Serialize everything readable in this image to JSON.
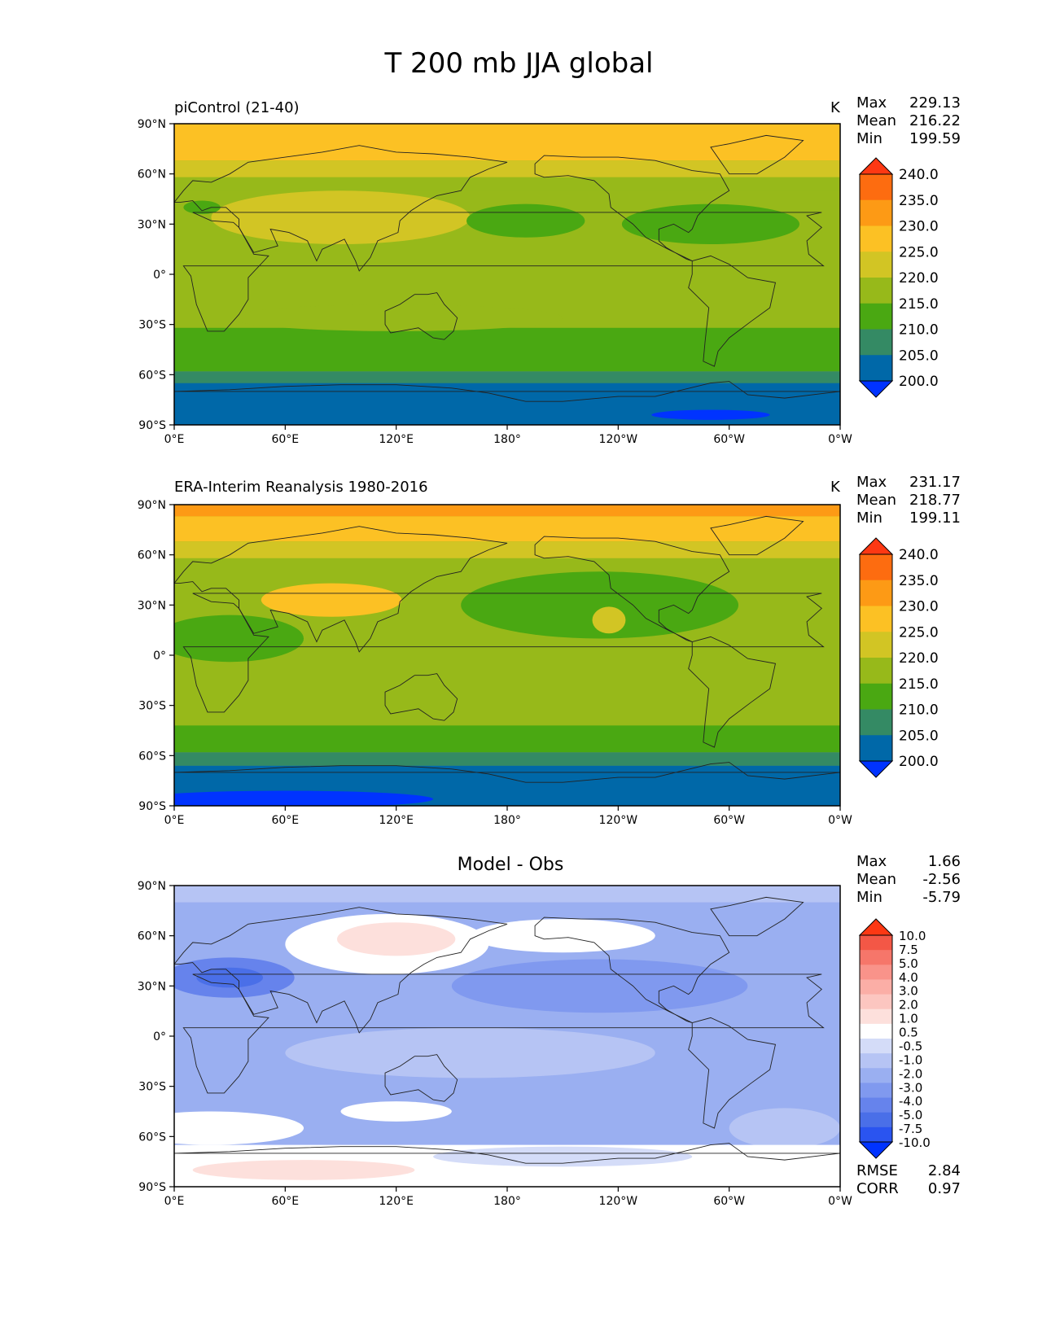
{
  "figure": {
    "title": "T 200 mb JJA global"
  },
  "axes": {
    "lat_ticks": [
      "90°N",
      "60°N",
      "30°N",
      "0°",
      "30°S",
      "60°S",
      "90°S"
    ],
    "lon_ticks": [
      "0°E",
      "60°E",
      "120°E",
      "180°",
      "120°W",
      "60°W",
      "0°W"
    ]
  },
  "panels": [
    {
      "title": "piControl (21-40)",
      "units": "K",
      "stats": {
        "max_label": "Max",
        "max": "229.13",
        "mean_label": "Mean",
        "mean": "216.22",
        "min_label": "Min",
        "min": "199.59"
      },
      "colorbar": {
        "labels": [
          "240.0",
          "235.0",
          "230.0",
          "225.0",
          "220.0",
          "215.0",
          "210.0",
          "205.0",
          "200.0"
        ],
        "colors": [
          "#0033ff",
          "#0068a8",
          "#348a64",
          "#4aa812",
          "#97b91a",
          "#d2c524",
          "#fcc124",
          "#fd9a15",
          "#fd6c10",
          "#fd3813"
        ]
      }
    },
    {
      "title": "ERA-Interim Reanalysis 1980-2016",
      "units": "K",
      "stats": {
        "max_label": "Max",
        "max": "231.17",
        "mean_label": "Mean",
        "mean": "218.77",
        "min_label": "Min",
        "min": "199.11"
      },
      "colorbar": {
        "labels": [
          "240.0",
          "235.0",
          "230.0",
          "225.0",
          "220.0",
          "215.0",
          "210.0",
          "205.0",
          "200.0"
        ],
        "colors": [
          "#0033ff",
          "#0068a8",
          "#348a64",
          "#4aa812",
          "#97b91a",
          "#d2c524",
          "#fcc124",
          "#fd9a15",
          "#fd6c10",
          "#fd3813"
        ]
      }
    },
    {
      "title": "Model - Obs",
      "units": "",
      "stats": {
        "max_label": "Max",
        "max": "1.66",
        "mean_label": "Mean",
        "mean": "-2.56",
        "min_label": "Min",
        "min": "-5.79"
      },
      "colorbar": {
        "labels": [
          "10.0",
          "7.5",
          "5.0",
          "4.0",
          "3.0",
          "2.0",
          "1.0",
          "0.5",
          "-0.5",
          "-1.0",
          "-2.0",
          "-3.0",
          "-4.0",
          "-5.0",
          "-7.5",
          "-10.0"
        ],
        "colors": [
          "#0033ff",
          "#2a54f0",
          "#4a6fe8",
          "#6683ec",
          "#8099ef",
          "#9aaff1",
          "#b6c4f4",
          "#d4dcf8",
          "#ffffff",
          "#fde0dc",
          "#fcc6c0",
          "#fbaea6",
          "#f9938a",
          "#f6766a",
          "#f35746",
          "#fd3813"
        ]
      },
      "metrics": {
        "rmse_label": "RMSE",
        "rmse": "2.84",
        "corr_label": "CORR",
        "corr": "0.97"
      }
    }
  ]
}
